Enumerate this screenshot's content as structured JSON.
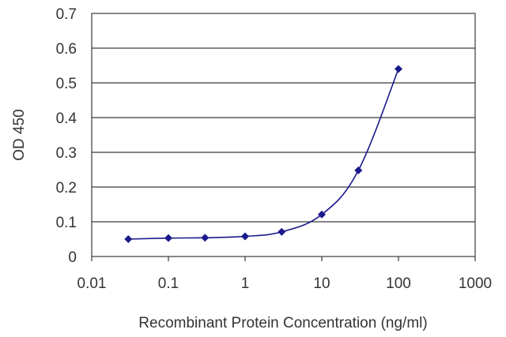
{
  "chart_data": {
    "type": "line",
    "title": "",
    "xlabel": "Recombinant Protein Concentration (ng/ml)",
    "ylabel": "OD 450",
    "xscale": "log",
    "xlim": [
      0.01,
      1000
    ],
    "ylim": [
      0,
      0.7
    ],
    "x_ticks": [
      0.01,
      0.1,
      1,
      10,
      100,
      1000
    ],
    "x_tick_labels": [
      "0.01",
      "0.1",
      "1",
      "10",
      "100",
      "1000"
    ],
    "y_ticks": [
      0,
      0.1,
      0.2,
      0.3,
      0.4,
      0.5,
      0.6,
      0.7
    ],
    "y_tick_labels": [
      "0",
      "0.1",
      "0.2",
      "0.3",
      "0.4",
      "0.5",
      "0.6",
      "0.7"
    ],
    "grid": "horizontal",
    "legend": "none",
    "series": [
      {
        "x": [
          0.03,
          0.1,
          0.3,
          1,
          3,
          10,
          30,
          100
        ],
        "y": [
          0.05,
          0.053,
          0.054,
          0.058,
          0.071,
          0.121,
          0.248,
          0.54
        ]
      }
    ],
    "colors": {
      "series": "#1a1a8c",
      "grid": "#3a3a3a",
      "axis": "#3a3a3a",
      "plot_background": "#ffffff"
    }
  }
}
